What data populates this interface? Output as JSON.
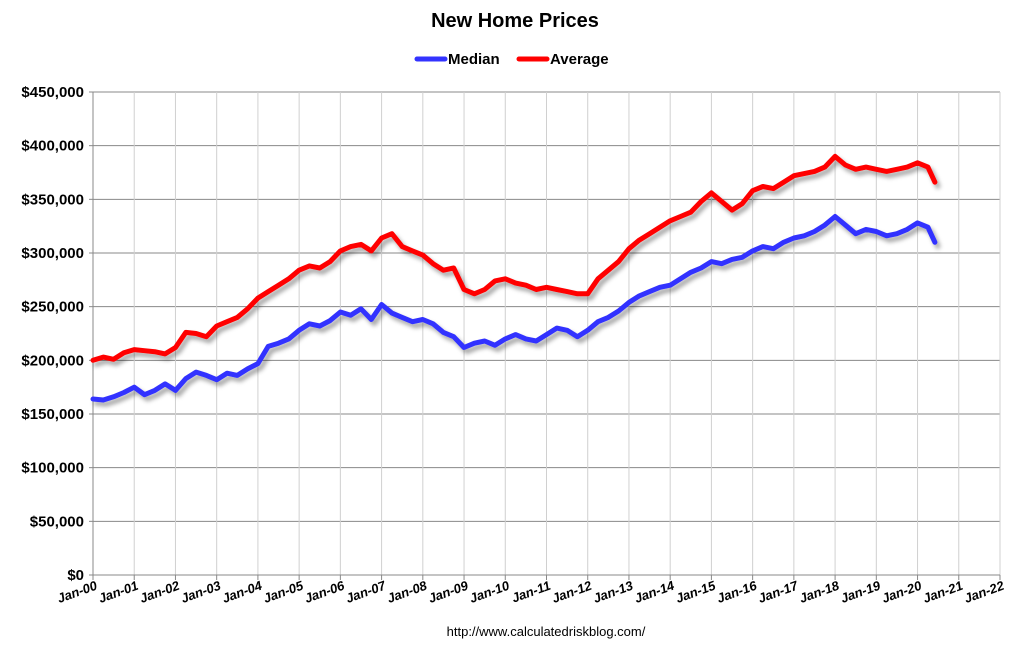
{
  "chart_data": {
    "type": "line",
    "title": "New Home Prices",
    "source_text": "http://www.calculatedriskblog.com/",
    "ylim": [
      0,
      450000
    ],
    "y_ticks": [
      "$0",
      "$50,000",
      "$100,000",
      "$150,000",
      "$200,000",
      "$250,000",
      "$300,000",
      "$350,000",
      "$400,000",
      "$450,000"
    ],
    "x_ticks": [
      "Jan-00",
      "Jan-01",
      "Jan-02",
      "Jan-03",
      "Jan-04",
      "Jan-05",
      "Jan-06",
      "Jan-07",
      "Jan-08",
      "Jan-09",
      "Jan-10",
      "Jan-11",
      "Jan-12",
      "Jan-13",
      "Jan-14",
      "Jan-15",
      "Jan-16",
      "Jan-17",
      "Jan-18",
      "Jan-19",
      "Jan-20",
      "Jan-21",
      "Jan-22"
    ],
    "x_range_years": [
      2000,
      2022
    ],
    "grid": true,
    "legend_position": "top",
    "series": [
      {
        "name": "Median",
        "color": "#3333ff",
        "points": [
          [
            2000.0,
            164000
          ],
          [
            2000.25,
            163000
          ],
          [
            2000.5,
            166000
          ],
          [
            2000.75,
            170000
          ],
          [
            2001.0,
            175000
          ],
          [
            2001.25,
            168000
          ],
          [
            2001.5,
            172000
          ],
          [
            2001.75,
            178000
          ],
          [
            2002.0,
            172000
          ],
          [
            2002.25,
            183000
          ],
          [
            2002.5,
            189000
          ],
          [
            2002.75,
            186000
          ],
          [
            2003.0,
            182000
          ],
          [
            2003.25,
            188000
          ],
          [
            2003.5,
            186000
          ],
          [
            2003.75,
            192000
          ],
          [
            2004.0,
            197000
          ],
          [
            2004.25,
            213000
          ],
          [
            2004.5,
            216000
          ],
          [
            2004.75,
            220000
          ],
          [
            2005.0,
            228000
          ],
          [
            2005.25,
            234000
          ],
          [
            2005.5,
            232000
          ],
          [
            2005.75,
            237000
          ],
          [
            2006.0,
            245000
          ],
          [
            2006.25,
            242000
          ],
          [
            2006.5,
            248000
          ],
          [
            2006.75,
            238000
          ],
          [
            2007.0,
            252000
          ],
          [
            2007.25,
            244000
          ],
          [
            2007.5,
            240000
          ],
          [
            2007.75,
            236000
          ],
          [
            2008.0,
            238000
          ],
          [
            2008.25,
            234000
          ],
          [
            2008.5,
            226000
          ],
          [
            2008.75,
            222000
          ],
          [
            2009.0,
            212000
          ],
          [
            2009.25,
            216000
          ],
          [
            2009.5,
            218000
          ],
          [
            2009.75,
            214000
          ],
          [
            2010.0,
            220000
          ],
          [
            2010.25,
            224000
          ],
          [
            2010.5,
            220000
          ],
          [
            2010.75,
            218000
          ],
          [
            2011.0,
            224000
          ],
          [
            2011.25,
            230000
          ],
          [
            2011.5,
            228000
          ],
          [
            2011.75,
            222000
          ],
          [
            2012.0,
            228000
          ],
          [
            2012.25,
            236000
          ],
          [
            2012.5,
            240000
          ],
          [
            2012.75,
            246000
          ],
          [
            2013.0,
            254000
          ],
          [
            2013.25,
            260000
          ],
          [
            2013.5,
            264000
          ],
          [
            2013.75,
            268000
          ],
          [
            2014.0,
            270000
          ],
          [
            2014.25,
            276000
          ],
          [
            2014.5,
            282000
          ],
          [
            2014.75,
            286000
          ],
          [
            2015.0,
            292000
          ],
          [
            2015.25,
            290000
          ],
          [
            2015.5,
            294000
          ],
          [
            2015.75,
            296000
          ],
          [
            2016.0,
            302000
          ],
          [
            2016.25,
            306000
          ],
          [
            2016.5,
            304000
          ],
          [
            2016.75,
            310000
          ],
          [
            2017.0,
            314000
          ],
          [
            2017.25,
            316000
          ],
          [
            2017.5,
            320000
          ],
          [
            2017.75,
            326000
          ],
          [
            2018.0,
            334000
          ],
          [
            2018.25,
            326000
          ],
          [
            2018.5,
            318000
          ],
          [
            2018.75,
            322000
          ],
          [
            2019.0,
            320000
          ],
          [
            2019.25,
            316000
          ],
          [
            2019.5,
            318000
          ],
          [
            2019.75,
            322000
          ],
          [
            2020.0,
            328000
          ],
          [
            2020.25,
            324000
          ],
          [
            2020.42,
            310000
          ]
        ]
      },
      {
        "name": "Average",
        "color": "#ff0000",
        "points": [
          [
            2000.0,
            200000
          ],
          [
            2000.25,
            203000
          ],
          [
            2000.5,
            201000
          ],
          [
            2000.75,
            207000
          ],
          [
            2001.0,
            210000
          ],
          [
            2001.25,
            209000
          ],
          [
            2001.5,
            208000
          ],
          [
            2001.75,
            206000
          ],
          [
            2002.0,
            212000
          ],
          [
            2002.25,
            226000
          ],
          [
            2002.5,
            225000
          ],
          [
            2002.75,
            222000
          ],
          [
            2003.0,
            232000
          ],
          [
            2003.25,
            236000
          ],
          [
            2003.5,
            240000
          ],
          [
            2003.75,
            248000
          ],
          [
            2004.0,
            258000
          ],
          [
            2004.25,
            264000
          ],
          [
            2004.5,
            270000
          ],
          [
            2004.75,
            276000
          ],
          [
            2005.0,
            284000
          ],
          [
            2005.25,
            288000
          ],
          [
            2005.5,
            286000
          ],
          [
            2005.75,
            292000
          ],
          [
            2006.0,
            302000
          ],
          [
            2006.25,
            306000
          ],
          [
            2006.5,
            308000
          ],
          [
            2006.75,
            302000
          ],
          [
            2007.0,
            314000
          ],
          [
            2007.25,
            318000
          ],
          [
            2007.5,
            306000
          ],
          [
            2007.75,
            302000
          ],
          [
            2008.0,
            298000
          ],
          [
            2008.25,
            290000
          ],
          [
            2008.5,
            284000
          ],
          [
            2008.75,
            286000
          ],
          [
            2009.0,
            266000
          ],
          [
            2009.25,
            262000
          ],
          [
            2009.5,
            266000
          ],
          [
            2009.75,
            274000
          ],
          [
            2010.0,
            276000
          ],
          [
            2010.25,
            272000
          ],
          [
            2010.5,
            270000
          ],
          [
            2010.75,
            266000
          ],
          [
            2011.0,
            268000
          ],
          [
            2011.25,
            266000
          ],
          [
            2011.5,
            264000
          ],
          [
            2011.75,
            262000
          ],
          [
            2012.0,
            262000
          ],
          [
            2012.25,
            276000
          ],
          [
            2012.5,
            284000
          ],
          [
            2012.75,
            292000
          ],
          [
            2013.0,
            304000
          ],
          [
            2013.25,
            312000
          ],
          [
            2013.5,
            318000
          ],
          [
            2013.75,
            324000
          ],
          [
            2014.0,
            330000
          ],
          [
            2014.25,
            334000
          ],
          [
            2014.5,
            338000
          ],
          [
            2014.75,
            348000
          ],
          [
            2015.0,
            356000
          ],
          [
            2015.25,
            348000
          ],
          [
            2015.5,
            340000
          ],
          [
            2015.75,
            346000
          ],
          [
            2016.0,
            358000
          ],
          [
            2016.25,
            362000
          ],
          [
            2016.5,
            360000
          ],
          [
            2016.75,
            366000
          ],
          [
            2017.0,
            372000
          ],
          [
            2017.25,
            374000
          ],
          [
            2017.5,
            376000
          ],
          [
            2017.75,
            380000
          ],
          [
            2018.0,
            390000
          ],
          [
            2018.25,
            382000
          ],
          [
            2018.5,
            378000
          ],
          [
            2018.75,
            380000
          ],
          [
            2019.0,
            378000
          ],
          [
            2019.25,
            376000
          ],
          [
            2019.5,
            378000
          ],
          [
            2019.75,
            380000
          ],
          [
            2020.0,
            384000
          ],
          [
            2020.25,
            380000
          ],
          [
            2020.42,
            366000
          ]
        ]
      }
    ]
  }
}
